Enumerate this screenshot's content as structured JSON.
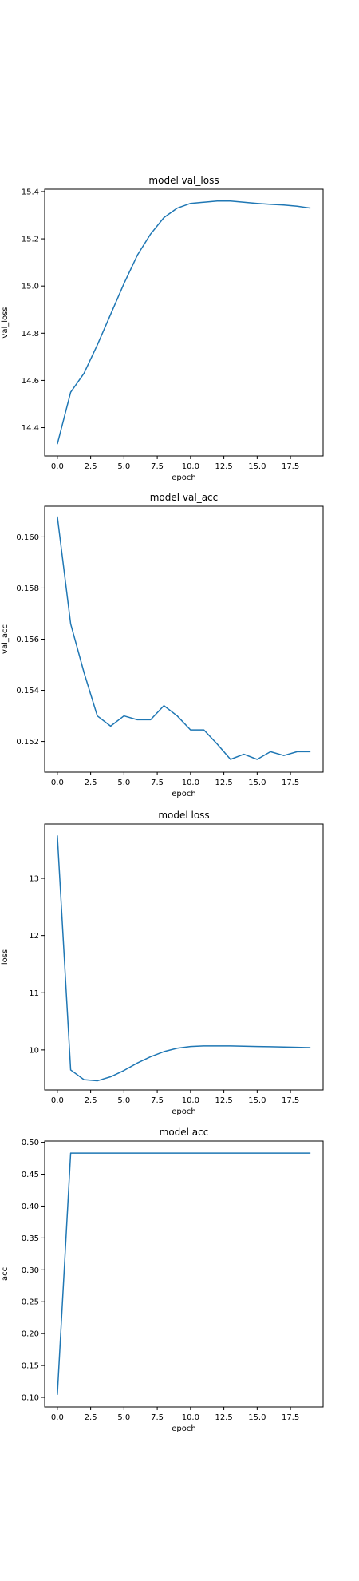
{
  "chart_data": [
    {
      "type": "line",
      "title": "model val_loss",
      "xlabel": "epoch",
      "ylabel": "val_loss",
      "xlim": [
        -0.95,
        19.95
      ],
      "ylim": [
        14.28,
        15.41
      ],
      "xticks": [
        "0.0",
        "2.5",
        "5.0",
        "7.5",
        "10.0",
        "12.5",
        "15.0",
        "17.5"
      ],
      "yticks": [
        "14.4",
        "14.6",
        "14.8",
        "15.0",
        "15.2",
        "15.4"
      ],
      "grid": false,
      "color": "#1f77b4",
      "x": [
        0,
        1,
        2,
        3,
        4,
        5,
        6,
        7,
        8,
        9,
        10,
        11,
        12,
        13,
        14,
        15,
        16,
        17,
        18,
        19
      ],
      "values": [
        14.33,
        14.55,
        14.63,
        14.75,
        14.88,
        15.01,
        15.13,
        15.22,
        15.29,
        15.33,
        15.35,
        15.355,
        15.36,
        15.36,
        15.355,
        15.35,
        15.346,
        15.343,
        15.338,
        15.33
      ]
    },
    {
      "type": "line",
      "title": "model val_acc",
      "xlabel": "epoch",
      "ylabel": "val_acc",
      "xlim": [
        -0.95,
        19.95
      ],
      "ylim": [
        0.1508,
        0.1612
      ],
      "xticks": [
        "0.0",
        "2.5",
        "5.0",
        "7.5",
        "10.0",
        "12.5",
        "15.0",
        "17.5"
      ],
      "yticks": [
        "0.152",
        "0.154",
        "0.156",
        "0.158",
        "0.160"
      ],
      "grid": false,
      "color": "#1f77b4",
      "x": [
        0,
        1,
        2,
        3,
        4,
        5,
        6,
        7,
        8,
        9,
        10,
        11,
        12,
        13,
        14,
        15,
        16,
        17,
        18,
        19
      ],
      "values": [
        0.1608,
        0.1566,
        0.1547,
        0.153,
        0.1526,
        0.153,
        0.15285,
        0.15285,
        0.1534,
        0.153,
        0.15245,
        0.15245,
        0.1519,
        0.1513,
        0.1515,
        0.1513,
        0.1516,
        0.15145,
        0.1516,
        0.1516
      ]
    },
    {
      "type": "line",
      "title": "model loss",
      "xlabel": "epoch",
      "ylabel": "loss",
      "xlim": [
        -0.95,
        19.95
      ],
      "ylim": [
        9.3,
        13.95
      ],
      "xticks": [
        "0.0",
        "2.5",
        "5.0",
        "7.5",
        "10.0",
        "12.5",
        "15.0",
        "17.5"
      ],
      "yticks": [
        "10",
        "11",
        "12",
        "13"
      ],
      "grid": false,
      "color": "#1f77b4",
      "x": [
        0,
        1,
        2,
        3,
        4,
        5,
        6,
        7,
        8,
        9,
        10,
        11,
        12,
        13,
        14,
        15,
        16,
        17,
        18,
        19
      ],
      "values": [
        13.75,
        9.65,
        9.48,
        9.46,
        9.53,
        9.64,
        9.77,
        9.88,
        9.97,
        10.03,
        10.06,
        10.07,
        10.07,
        10.07,
        10.065,
        10.06,
        10.055,
        10.05,
        10.045,
        10.04
      ]
    },
    {
      "type": "line",
      "title": "model acc",
      "xlabel": "epoch",
      "ylabel": "acc",
      "xlim": [
        -0.95,
        19.95
      ],
      "ylim": [
        0.085,
        0.502
      ],
      "xticks": [
        "0.0",
        "2.5",
        "5.0",
        "7.5",
        "10.0",
        "12.5",
        "15.0",
        "17.5"
      ],
      "yticks": [
        "0.10",
        "0.15",
        "0.20",
        "0.25",
        "0.30",
        "0.35",
        "0.40",
        "0.45",
        "0.50"
      ],
      "grid": false,
      "color": "#1f77b4",
      "x": [
        0,
        1,
        2,
        3,
        4,
        5,
        6,
        7,
        8,
        9,
        10,
        11,
        12,
        13,
        14,
        15,
        16,
        17,
        18,
        19
      ],
      "values": [
        0.104,
        0.483,
        0.483,
        0.483,
        0.483,
        0.483,
        0.483,
        0.483,
        0.483,
        0.483,
        0.483,
        0.483,
        0.483,
        0.483,
        0.483,
        0.483,
        0.483,
        0.483,
        0.483,
        0.483
      ]
    }
  ]
}
